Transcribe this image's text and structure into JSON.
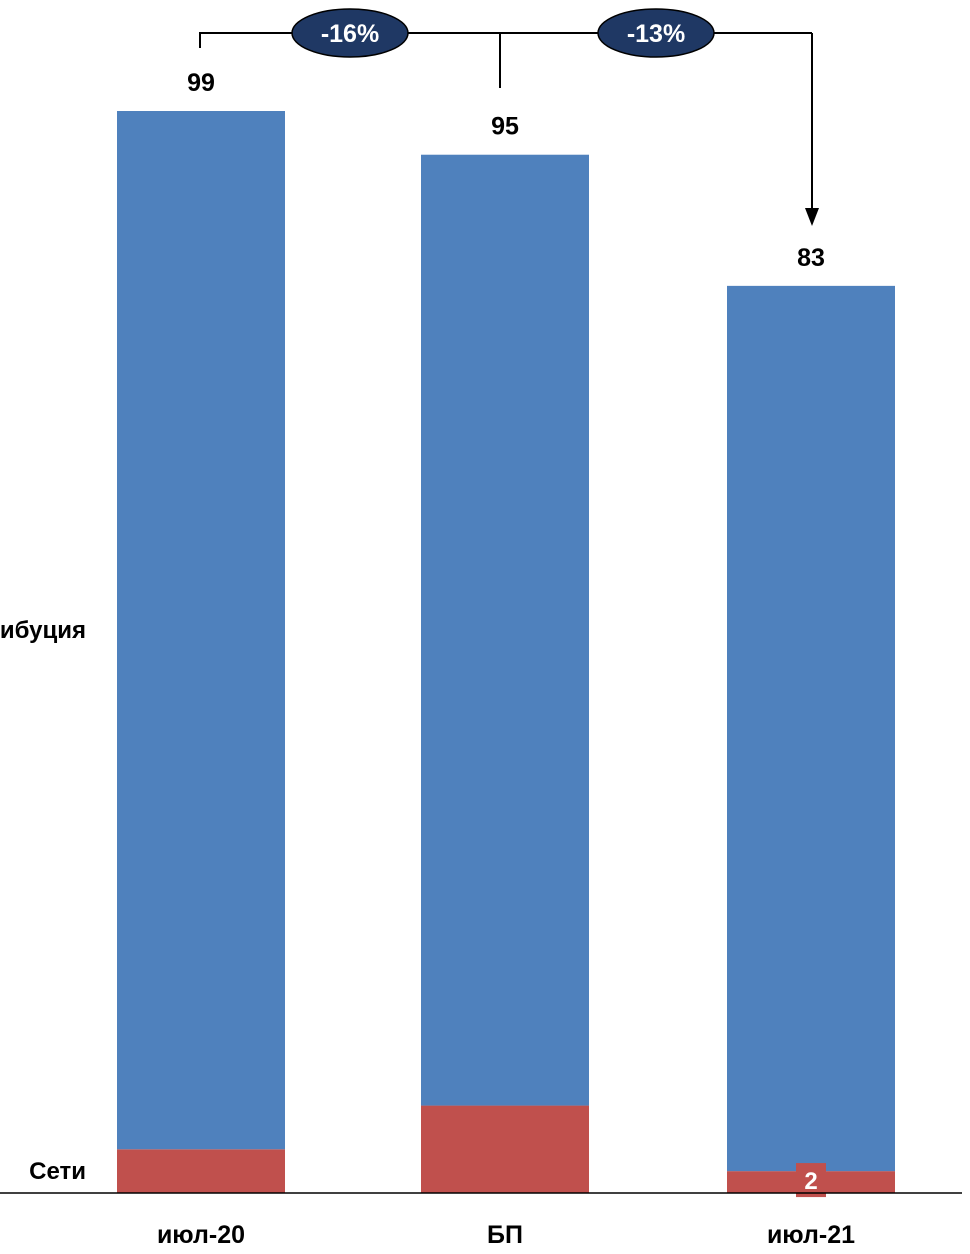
{
  "chart_data": {
    "type": "bar",
    "stacked": true,
    "categories": [
      "июл-20",
      "БП",
      "июл-21"
    ],
    "series": [
      {
        "name": "Сети",
        "values": [
          4,
          8,
          2
        ],
        "color": "#C0504D"
      },
      {
        "name": "Дистрибуция",
        "values": [
          95,
          87,
          81
        ],
        "color": "#4F81BD"
      }
    ],
    "totals": [
      99,
      95,
      83
    ],
    "ylim": [
      0,
      99
    ],
    "grid": false,
    "legend_position": "left",
    "segment_labels": [
      {
        "category": "июл-21",
        "series": "Сети",
        "text": "2"
      }
    ],
    "change_labels": [
      {
        "from": "июл-20",
        "to": "июл-21",
        "text": "-16%"
      },
      {
        "from": "БП",
        "to": "июл-21",
        "text": "-13%"
      }
    ],
    "colors": {
      "change_badge_fill": "#1F3864",
      "change_badge_text": "#FFFFFF",
      "axis": "#000000"
    }
  }
}
